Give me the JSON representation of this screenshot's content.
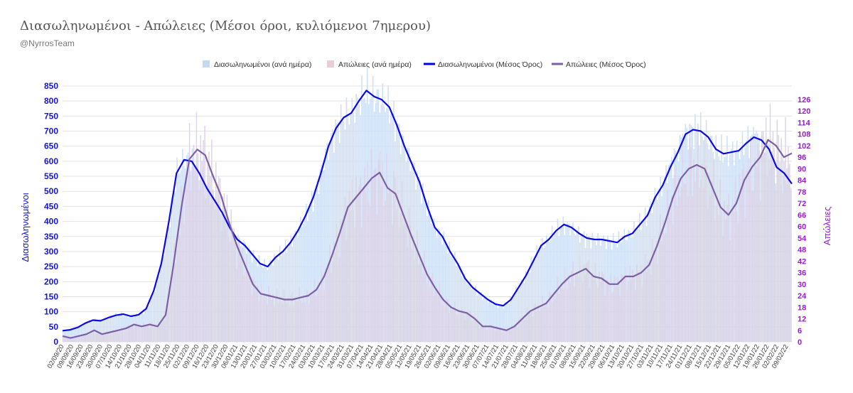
{
  "chart_data": {
    "type": "bar+line",
    "title": "Διασωληνωμένοι - Απώλειες (Μέσοι όροι, κυλιόμενοι 7ημερου)",
    "subtitle": "@NyrrosTeam",
    "ylabel_left": "Διασωληνωμένοι",
    "ylabel_right": "Απώλειες",
    "ylim_left": [
      0,
      850
    ],
    "ylim_right": [
      0,
      133
    ],
    "yticks_left": [
      "0",
      "50",
      "100",
      "150",
      "200",
      "250",
      "300",
      "350",
      "400",
      "450",
      "500",
      "550",
      "600",
      "650",
      "700",
      "750",
      "800",
      "850"
    ],
    "yticks_right": [
      "0",
      "6",
      "12",
      "18",
      "24",
      "30",
      "36",
      "42",
      "48",
      "54",
      "60",
      "66",
      "72",
      "78",
      "84",
      "90",
      "96",
      "102",
      "108",
      "114",
      "120",
      "126"
    ],
    "x_tick_labels": [
      "02/09/20",
      "09/09/20",
      "16/09/20",
      "23/09/20",
      "30/09/20",
      "07/10/20",
      "14/10/20",
      "21/10/20",
      "28/10/20",
      "04/11/20",
      "11/11/20",
      "18/11/20",
      "25/11/20",
      "02/12/20",
      "09/12/20",
      "16/12/20",
      "23/12/20",
      "30/12/20",
      "06/01/21",
      "13/01/21",
      "20/01/21",
      "27/01/21",
      "03/02/21",
      "10/02/21",
      "17/02/21",
      "24/02/21",
      "03/03/21",
      "10/03/21",
      "17/03/21",
      "24/03/21",
      "31/03/21",
      "07/04/21",
      "14/04/21",
      "21/04/21",
      "28/04/21",
      "05/05/21",
      "12/05/21",
      "19/05/21",
      "26/05/21",
      "02/06/21",
      "09/06/21",
      "16/06/21",
      "23/06/21",
      "30/06/21",
      "07/07/21",
      "14/07/21",
      "21/07/21",
      "28/07/21",
      "04/08/21",
      "11/08/21",
      "18/08/21",
      "25/08/21",
      "01/09/21",
      "08/09/21",
      "15/09/21",
      "22/09/21",
      "29/09/21",
      "06/10/21",
      "13/10/21",
      "20/10/21",
      "27/10/21",
      "03/11/21",
      "10/11/21",
      "17/11/21",
      "24/11/21",
      "01/12/21",
      "08/12/21",
      "15/12/21",
      "22/12/21",
      "29/12/21",
      "05/01/22",
      "12/01/22",
      "19/01/22",
      "26/01/22",
      "02/02/22",
      "09/02/22"
    ],
    "intubated_weekly_avg": [
      37,
      40,
      48,
      62,
      72,
      70,
      80,
      88,
      92,
      85,
      90,
      110,
      170,
      260,
      400,
      560,
      605,
      600,
      560,
      510,
      470,
      430,
      380,
      340,
      320,
      290,
      260,
      250,
      280,
      300,
      330,
      370,
      420,
      480,
      560,
      650,
      710,
      745,
      760,
      800,
      835,
      815,
      805,
      780,
      720,
      650,
      590,
      530,
      450,
      380,
      350,
      300,
      260,
      210,
      180,
      160,
      140,
      125,
      120,
      140,
      180,
      220,
      270,
      320,
      340,
      370,
      390,
      380,
      360,
      345,
      340,
      340,
      335,
      330,
      350,
      360,
      390,
      420,
      480,
      520,
      580,
      630,
      690,
      705,
      700,
      680,
      640,
      625,
      630,
      635,
      660,
      680,
      670,
      640,
      580,
      560,
      525
    ],
    "deaths_weekly_avg": [
      3,
      2,
      3,
      4,
      6,
      4,
      5,
      6,
      7,
      9,
      8,
      9,
      8,
      14,
      40,
      70,
      95,
      100,
      97,
      86,
      76,
      62,
      50,
      40,
      30,
      25,
      24,
      23,
      22,
      22,
      23,
      24,
      27,
      34,
      45,
      57,
      70,
      75,
      80,
      85,
      88,
      80,
      77,
      66,
      55,
      45,
      35,
      28,
      22,
      18,
      16,
      15,
      12,
      8,
      8,
      7,
      6,
      8,
      12,
      16,
      18,
      20,
      25,
      30,
      34,
      36,
      38,
      34,
      33,
      30,
      30,
      34,
      34,
      36,
      40,
      50,
      62,
      75,
      85,
      90,
      92,
      90,
      80,
      70,
      66,
      72,
      84,
      91,
      96,
      105,
      102,
      96,
      98
    ],
    "legend": [
      {
        "label": "Διασωληνωμένοι (ανά ημέρα)",
        "color": "#c6d9f1"
      },
      {
        "label": "Απώλειες (ανά ημέρα)",
        "color": "#e8cfd6"
      },
      {
        "label": "Διασωληνωμένοι (Μέσος Όρος)",
        "color": "#0000e6"
      },
      {
        "label": "Απώλειες (Μέσος Όρος)",
        "color": "#7d5fa6"
      }
    ],
    "colors": {
      "intubated_bar": "#cfe0f6",
      "deaths_bar": "#d9cfe3",
      "intubated_line": "#0a0ae6",
      "deaths_line": "#7d5fa6",
      "left_axis_text": "#1515d6",
      "right_axis_text": "#9b18d8",
      "grid": "#e3e3e3"
    }
  }
}
